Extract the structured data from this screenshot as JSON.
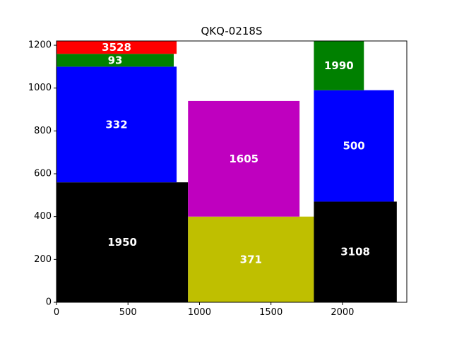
{
  "chart_data": {
    "type": "treemap-blocks",
    "title": "QKQ-0218S",
    "xlabel": "",
    "ylabel": "",
    "xlim": [
      0,
      2450
    ],
    "ylim": [
      0,
      1220
    ],
    "x_ticks": [
      0,
      500,
      1000,
      1500,
      2000
    ],
    "y_ticks": [
      0,
      200,
      400,
      600,
      800,
      1000,
      1200
    ],
    "grid": false,
    "blocks": [
      {
        "label": "1950",
        "x": 0,
        "y": 0,
        "width": 920,
        "height": 560,
        "color": "#000000"
      },
      {
        "label": "332",
        "x": 0,
        "y": 560,
        "width": 840,
        "height": 540,
        "color": "#0000ff"
      },
      {
        "label": "93",
        "x": 0,
        "y": 1100,
        "width": 820,
        "height": 60,
        "color": "#008000"
      },
      {
        "label": "3528",
        "x": 0,
        "y": 1160,
        "width": 840,
        "height": 60,
        "color": "#ff0000"
      },
      {
        "label": "371",
        "x": 920,
        "y": 0,
        "width": 880,
        "height": 400,
        "color": "#bfbf00"
      },
      {
        "label": "1605",
        "x": 920,
        "y": 400,
        "width": 780,
        "height": 540,
        "color": "#bf00bf"
      },
      {
        "label": "3108",
        "x": 1800,
        "y": 0,
        "width": 580,
        "height": 470,
        "color": "#000000"
      },
      {
        "label": "500",
        "x": 1800,
        "y": 470,
        "width": 560,
        "height": 520,
        "color": "#0000ff"
      },
      {
        "label": "1990",
        "x": 1800,
        "y": 990,
        "width": 350,
        "height": 230,
        "color": "#008000"
      }
    ]
  }
}
